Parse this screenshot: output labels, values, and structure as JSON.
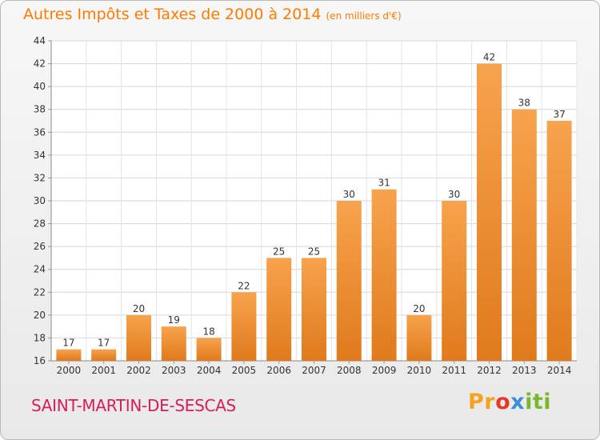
{
  "header": {
    "title": "Autres Impôts et Taxes de 2000 à 2014",
    "unit": "(en milliers d'€)"
  },
  "footer": {
    "commune": "SAINT-MARTIN-DE-SESCAS",
    "logo_parts": [
      "Pr",
      "o",
      "x",
      "iti"
    ]
  },
  "colors": {
    "bar_top": "#f7a34d",
    "bar_bottom": "#e07a1d",
    "title": "#ff7a00",
    "commune": "#d81b5e"
  },
  "chart_data": {
    "type": "bar",
    "categories": [
      "2000",
      "2001",
      "2002",
      "2003",
      "2004",
      "2005",
      "2006",
      "2007",
      "2008",
      "2009",
      "2010",
      "2011",
      "2012",
      "2013",
      "2014"
    ],
    "values": [
      17,
      17,
      20,
      19,
      18,
      22,
      25,
      25,
      30,
      31,
      20,
      30,
      42,
      38,
      37
    ],
    "ylim": [
      16,
      44
    ],
    "yticks": [
      16,
      18,
      20,
      22,
      24,
      26,
      28,
      30,
      32,
      34,
      36,
      38,
      40,
      42,
      44
    ],
    "grid": true,
    "data_labels": true
  }
}
